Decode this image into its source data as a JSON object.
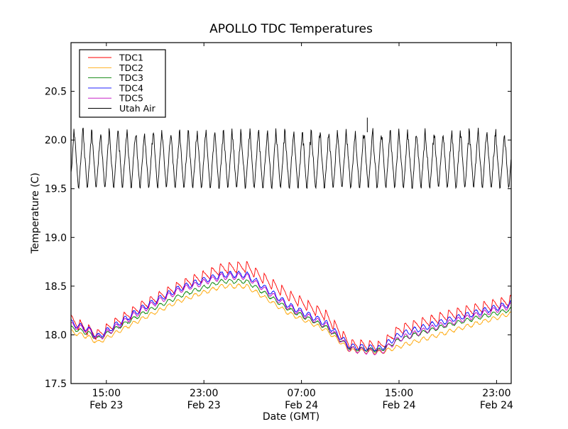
{
  "chart_data": {
    "type": "line",
    "title": "APOLLO TDC Temperatures",
    "xlabel": "Date (GMT)",
    "ylabel": "Temperature (C)",
    "x_units": "hours since Feb 23 12:00 GMT",
    "xlim": [
      0.1,
      36.2
    ],
    "ylim": [
      17.5,
      21.0
    ],
    "grid": false,
    "legend_position": "top-left",
    "y_ticks": [
      {
        "value": 17.5,
        "label": "17.5"
      },
      {
        "value": 18.0,
        "label": "18.0"
      },
      {
        "value": 18.5,
        "label": "18.5"
      },
      {
        "value": 19.0,
        "label": "19.0"
      },
      {
        "value": 19.5,
        "label": "19.5"
      },
      {
        "value": 20.0,
        "label": "20.0"
      },
      {
        "value": 20.5,
        "label": "20.5"
      }
    ],
    "x_ticks": [
      {
        "value": 3,
        "time": "15:00",
        "date": "Feb 23"
      },
      {
        "value": 11,
        "time": "23:00",
        "date": "Feb 23"
      },
      {
        "value": 19,
        "time": "07:00",
        "date": "Feb 24"
      },
      {
        "value": 27,
        "time": "15:00",
        "date": "Feb 24"
      },
      {
        "value": 35,
        "time": "23:00",
        "date": "Feb 24"
      }
    ],
    "series": [
      {
        "name": "TDC1",
        "color": "#ff0000",
        "baseline_x": [
          0.1,
          1.5,
          2.3,
          6,
          9,
          12.5,
          14.5,
          18,
          21,
          23,
          25.5,
          27,
          31,
          36.2
        ],
        "baseline_y": [
          18.15,
          18.05,
          18.0,
          18.3,
          18.5,
          18.68,
          18.7,
          18.4,
          18.2,
          17.9,
          17.88,
          18.05,
          18.2,
          18.35
        ],
        "ripple_amplitude": 0.12,
        "ripple_period_hours": 0.72
      },
      {
        "name": "TDC2",
        "color": "#ffa500",
        "baseline_x": [
          0.1,
          1.5,
          2.3,
          6,
          9,
          12.5,
          14.5,
          18,
          21,
          23,
          25.5,
          27,
          31,
          36.2
        ],
        "baseline_y": [
          18.03,
          17.98,
          17.92,
          18.17,
          18.35,
          18.5,
          18.5,
          18.22,
          18.05,
          17.84,
          17.82,
          17.88,
          18.03,
          18.22
        ],
        "ripple_amplitude": 0.04,
        "ripple_period_hours": 0.72
      },
      {
        "name": "TDC3",
        "color": "#008000",
        "baseline_x": [
          0.1,
          1.5,
          2.3,
          6,
          9,
          12.5,
          14.5,
          18,
          21,
          23,
          25.5,
          27,
          31,
          36.2
        ],
        "baseline_y": [
          18.07,
          18.02,
          17.96,
          18.22,
          18.4,
          18.55,
          18.55,
          18.26,
          18.08,
          17.86,
          17.84,
          17.95,
          18.1,
          18.26
        ],
        "ripple_amplitude": 0.04,
        "ripple_period_hours": 0.72
      },
      {
        "name": "TDC4",
        "color": "#0000ff",
        "baseline_x": [
          0.1,
          1.5,
          2.3,
          6,
          9,
          12.5,
          14.5,
          18,
          21,
          23,
          25.5,
          27,
          31,
          36.2
        ],
        "baseline_y": [
          18.12,
          18.06,
          17.98,
          18.28,
          18.48,
          18.62,
          18.62,
          18.3,
          18.12,
          17.88,
          17.86,
          18.0,
          18.15,
          18.32
        ],
        "ripple_amplitude": 0.06,
        "ripple_period_hours": 0.72
      },
      {
        "name": "TDC5",
        "color": "#bf00bf",
        "baseline_x": [
          0.1,
          1.5,
          2.3,
          6,
          9,
          12.5,
          14.5,
          18,
          21,
          23,
          25.5,
          27,
          31,
          36.2
        ],
        "baseline_y": [
          18.1,
          18.05,
          17.96,
          18.26,
          18.46,
          18.6,
          18.6,
          18.28,
          18.1,
          17.85,
          17.82,
          17.96,
          18.12,
          18.3
        ],
        "ripple_amplitude": 0.06,
        "ripple_period_hours": 0.72
      },
      {
        "name": "Utah Air",
        "color": "#000000",
        "oscillation_min": 19.48,
        "oscillation_max": 20.1,
        "oscillation_period_hours": 0.72,
        "notable_spike": {
          "x": 24.4,
          "y": 20.23
        }
      }
    ]
  }
}
